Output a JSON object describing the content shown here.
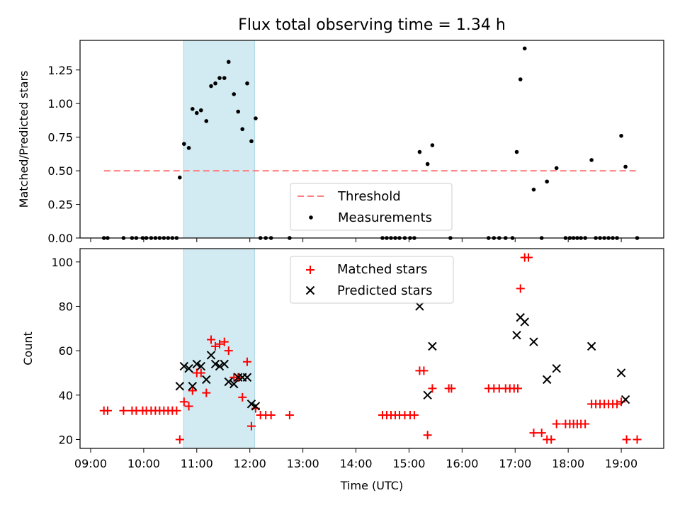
{
  "chart_data": {
    "type": "scatter",
    "title": "Flux total observing time = 1.34 h",
    "x_axis": {
      "label": "Time (UTC)",
      "range_hours": [
        8.8,
        19.8
      ],
      "ticks": [
        9,
        10,
        11,
        12,
        13,
        14,
        15,
        16,
        17,
        18,
        19
      ],
      "tick_labels": [
        "09:00",
        "10:00",
        "11:00",
        "12:00",
        "13:00",
        "14:00",
        "15:00",
        "16:00",
        "17:00",
        "18:00",
        "19:00"
      ]
    },
    "shaded_interval_hours": [
      10.75,
      12.09
    ],
    "colors": {
      "shade": "#add8e6",
      "threshold": "#ff7f7f",
      "measurement": "#000000",
      "matched": "#ff0000",
      "predicted": "#000000"
    },
    "top_panel": {
      "ylabel": "Matched/Predicted stars",
      "ylim": [
        0,
        1.47
      ],
      "yticks": [
        0,
        0.25,
        0.5,
        0.75,
        1.0,
        1.25
      ],
      "ytick_labels": [
        "0.00",
        "0.25",
        "0.50",
        "0.75",
        "1.00",
        "1.25"
      ],
      "threshold": {
        "value": 0.5,
        "x_range_hours": [
          9.25,
          19.3
        ],
        "label": "Threshold"
      },
      "legend": {
        "threshold_label": "Threshold",
        "measurements_label": "Measurements",
        "location": "lower center"
      },
      "measurements": [
        [
          9.25,
          0
        ],
        [
          9.32,
          0
        ],
        [
          9.62,
          0
        ],
        [
          9.78,
          0
        ],
        [
          9.86,
          0
        ],
        [
          9.98,
          0
        ],
        [
          10.05,
          0
        ],
        [
          10.14,
          0
        ],
        [
          10.22,
          0
        ],
        [
          10.3,
          0
        ],
        [
          10.38,
          0
        ],
        [
          10.46,
          0
        ],
        [
          10.54,
          0
        ],
        [
          10.62,
          0
        ],
        [
          10.68,
          0.45
        ],
        [
          10.76,
          0.7
        ],
        [
          10.85,
          0.67
        ],
        [
          10.92,
          0.96
        ],
        [
          11.0,
          0.93
        ],
        [
          11.08,
          0.95
        ],
        [
          11.18,
          0.87
        ],
        [
          11.27,
          1.13
        ],
        [
          11.35,
          1.15
        ],
        [
          11.43,
          1.19
        ],
        [
          11.52,
          1.19
        ],
        [
          11.6,
          1.31
        ],
        [
          11.7,
          1.07
        ],
        [
          11.78,
          0.94
        ],
        [
          11.86,
          0.81
        ],
        [
          11.95,
          1.15
        ],
        [
          12.03,
          0.72
        ],
        [
          12.11,
          0.89
        ],
        [
          12.2,
          0
        ],
        [
          12.3,
          0
        ],
        [
          12.4,
          0
        ],
        [
          12.75,
          0
        ],
        [
          14.5,
          0
        ],
        [
          14.58,
          0
        ],
        [
          14.66,
          0
        ],
        [
          14.74,
          0
        ],
        [
          14.82,
          0
        ],
        [
          14.92,
          0
        ],
        [
          15.02,
          0
        ],
        [
          15.1,
          0
        ],
        [
          15.2,
          0.64
        ],
        [
          15.35,
          0.55
        ],
        [
          15.44,
          0.69
        ],
        [
          15.78,
          0
        ],
        [
          16.5,
          0
        ],
        [
          16.6,
          0
        ],
        [
          16.7,
          0
        ],
        [
          16.82,
          0
        ],
        [
          16.95,
          0
        ],
        [
          17.03,
          0.64
        ],
        [
          17.1,
          1.18
        ],
        [
          17.18,
          1.41
        ],
        [
          17.35,
          0.36
        ],
        [
          17.5,
          0
        ],
        [
          17.6,
          0.42
        ],
        [
          17.78,
          0.52
        ],
        [
          17.95,
          0
        ],
        [
          18.03,
          0
        ],
        [
          18.1,
          0
        ],
        [
          18.17,
          0
        ],
        [
          18.24,
          0
        ],
        [
          18.32,
          0
        ],
        [
          18.44,
          0.58
        ],
        [
          18.52,
          0
        ],
        [
          18.6,
          0
        ],
        [
          18.68,
          0
        ],
        [
          18.76,
          0
        ],
        [
          18.84,
          0
        ],
        [
          18.92,
          0
        ],
        [
          19.0,
          0.76
        ],
        [
          19.08,
          0.53
        ],
        [
          19.3,
          0
        ]
      ]
    },
    "bottom_panel": {
      "ylabel": "Count",
      "ylim": [
        16,
        106
      ],
      "yticks": [
        20,
        40,
        60,
        80,
        100
      ],
      "ytick_labels": [
        "20",
        "40",
        "60",
        "80",
        "100"
      ],
      "legend": {
        "matched_label": "Matched stars",
        "predicted_label": "Predicted stars",
        "location": "upper center"
      },
      "matched": [
        [
          9.25,
          33
        ],
        [
          9.32,
          33
        ],
        [
          9.62,
          33
        ],
        [
          9.78,
          33
        ],
        [
          9.86,
          33
        ],
        [
          9.98,
          33
        ],
        [
          10.05,
          33
        ],
        [
          10.14,
          33
        ],
        [
          10.22,
          33
        ],
        [
          10.3,
          33
        ],
        [
          10.38,
          33
        ],
        [
          10.46,
          33
        ],
        [
          10.54,
          33
        ],
        [
          10.62,
          33
        ],
        [
          10.68,
          20
        ],
        [
          10.76,
          37
        ],
        [
          10.85,
          35
        ],
        [
          10.92,
          42
        ],
        [
          11.0,
          50
        ],
        [
          11.08,
          50
        ],
        [
          11.18,
          41
        ],
        [
          11.27,
          65
        ],
        [
          11.35,
          62
        ],
        [
          11.43,
          63
        ],
        [
          11.52,
          64
        ],
        [
          11.6,
          60
        ],
        [
          11.7,
          48
        ],
        [
          11.78,
          48
        ],
        [
          11.86,
          39
        ],
        [
          11.95,
          55
        ],
        [
          12.03,
          26
        ],
        [
          12.11,
          34
        ],
        [
          12.2,
          31
        ],
        [
          12.3,
          31
        ],
        [
          12.4,
          31
        ],
        [
          12.75,
          31
        ],
        [
          14.5,
          31
        ],
        [
          14.58,
          31
        ],
        [
          14.66,
          31
        ],
        [
          14.74,
          31
        ],
        [
          14.82,
          31
        ],
        [
          14.92,
          31
        ],
        [
          15.02,
          31
        ],
        [
          15.1,
          31
        ],
        [
          15.2,
          51
        ],
        [
          15.28,
          51
        ],
        [
          15.35,
          22
        ],
        [
          15.44,
          43
        ],
        [
          15.75,
          43
        ],
        [
          15.8,
          43
        ],
        [
          16.5,
          43
        ],
        [
          16.6,
          43
        ],
        [
          16.7,
          43
        ],
        [
          16.82,
          43
        ],
        [
          16.9,
          43
        ],
        [
          16.98,
          43
        ],
        [
          17.05,
          43
        ],
        [
          17.1,
          88
        ],
        [
          17.18,
          102
        ],
        [
          17.25,
          102
        ],
        [
          17.35,
          23
        ],
        [
          17.5,
          23
        ],
        [
          17.6,
          20
        ],
        [
          17.68,
          20
        ],
        [
          17.78,
          27
        ],
        [
          17.95,
          27
        ],
        [
          18.03,
          27
        ],
        [
          18.1,
          27
        ],
        [
          18.17,
          27
        ],
        [
          18.24,
          27
        ],
        [
          18.32,
          27
        ],
        [
          18.44,
          36
        ],
        [
          18.52,
          36
        ],
        [
          18.6,
          36
        ],
        [
          18.68,
          36
        ],
        [
          18.76,
          36
        ],
        [
          18.84,
          36
        ],
        [
          18.92,
          36
        ],
        [
          19.0,
          37
        ],
        [
          19.1,
          20
        ],
        [
          19.3,
          20
        ]
      ],
      "predicted": [
        [
          10.68,
          44
        ],
        [
          10.76,
          53
        ],
        [
          10.85,
          52
        ],
        [
          10.92,
          44
        ],
        [
          11.0,
          54
        ],
        [
          11.08,
          53
        ],
        [
          11.18,
          47
        ],
        [
          11.27,
          58
        ],
        [
          11.35,
          54
        ],
        [
          11.43,
          53
        ],
        [
          11.52,
          54
        ],
        [
          11.6,
          46
        ],
        [
          11.7,
          45
        ],
        [
          11.78,
          48
        ],
        [
          11.86,
          48
        ],
        [
          11.95,
          48
        ],
        [
          12.03,
          36
        ],
        [
          12.11,
          35
        ],
        [
          15.2,
          80
        ],
        [
          15.35,
          40
        ],
        [
          15.44,
          62
        ],
        [
          17.03,
          67
        ],
        [
          17.1,
          75
        ],
        [
          17.18,
          73
        ],
        [
          17.35,
          64
        ],
        [
          17.6,
          47
        ],
        [
          17.78,
          52
        ],
        [
          18.44,
          62
        ],
        [
          19.0,
          50
        ],
        [
          19.08,
          38
        ]
      ]
    }
  }
}
